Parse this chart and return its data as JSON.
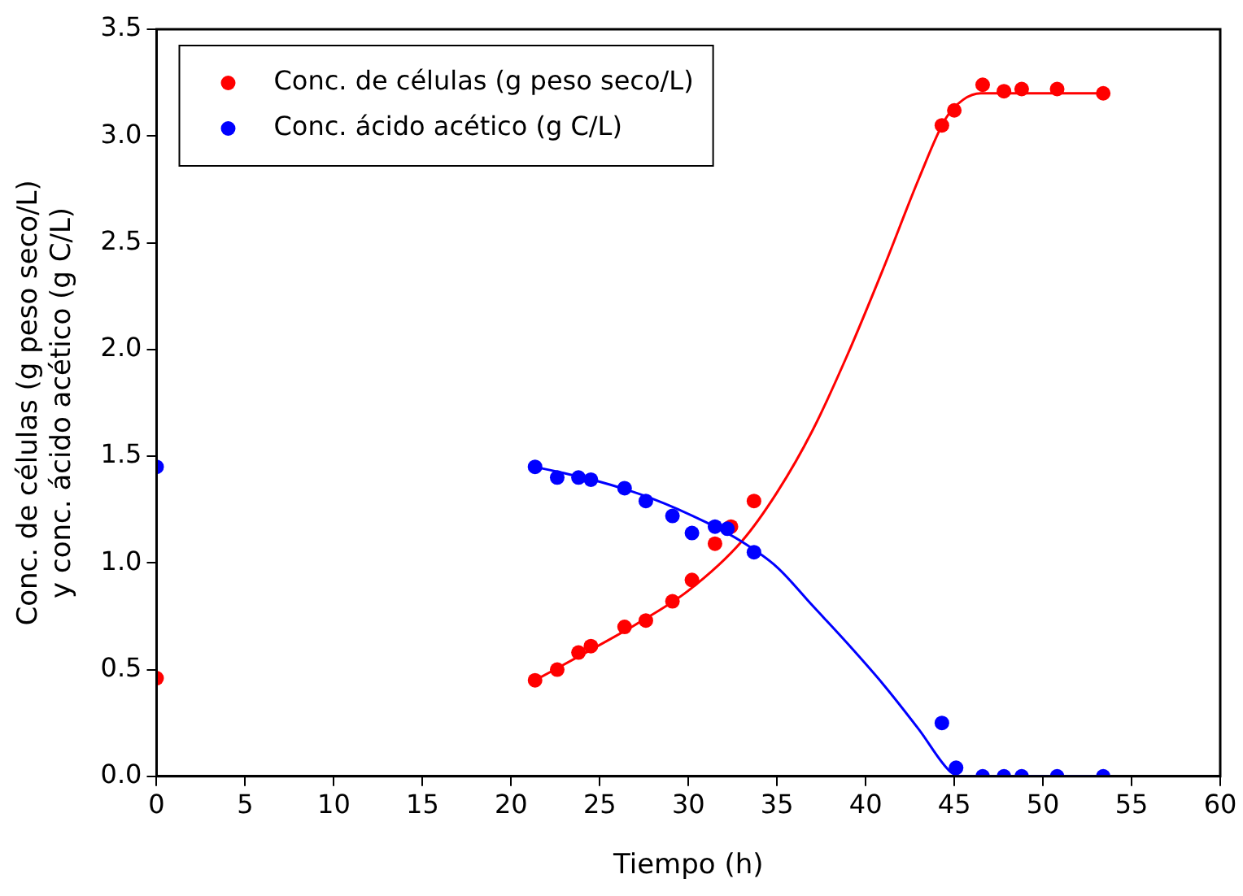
{
  "chart_data": {
    "type": "scatter",
    "xlabel": "Tiempo (h)",
    "ylabel": "Conc. de células (g peso seco/L)\ny conc. ácido acético (g C/L)",
    "xlim": [
      0,
      60
    ],
    "xticks": [
      0,
      5,
      10,
      15,
      20,
      25,
      30,
      35,
      40,
      45,
      50,
      55,
      60
    ],
    "ylim": [
      0,
      3.5
    ],
    "yticks": [
      {
        "value": 0,
        "label": "0.0"
      },
      0.5,
      {
        "value": 1,
        "label": "1.0"
      },
      1.5,
      {
        "value": 2,
        "label": "2.0"
      },
      2.5,
      {
        "value": 3,
        "label": "3.0"
      },
      3.5
    ],
    "grid": false,
    "legend": "top left",
    "marker": "circle",
    "series": [
      {
        "name": "Conc. de células (g peso seco/L)",
        "color": "#ff0000",
        "x": [
          0,
          21.35,
          22.6,
          23.8,
          24.5,
          26.4,
          27.6,
          29.1,
          30.2,
          31.5,
          32.4,
          33.7,
          44.3,
          45.0,
          46.6,
          47.8,
          48.8,
          50.8,
          53.4
        ],
        "values": [
          0.46,
          0.45,
          0.5,
          0.58,
          0.61,
          0.7,
          0.73,
          0.82,
          0.92,
          1.09,
          1.17,
          1.29,
          3.05,
          3.12,
          3.24,
          3.21,
          3.22,
          3.22,
          3.2
        ]
      },
      {
        "name": "Conc. ácido acético (g C/L)",
        "color": "#0000ff",
        "x": [
          0,
          21.35,
          22.6,
          23.8,
          24.5,
          26.4,
          27.6,
          29.1,
          30.2,
          31.5,
          32.2,
          33.7,
          44.3,
          45.1,
          46.6,
          47.8,
          48.8,
          50.8,
          53.4
        ],
        "values": [
          1.45,
          1.45,
          1.4,
          1.4,
          1.39,
          1.35,
          1.29,
          1.22,
          1.14,
          1.17,
          1.16,
          1.05,
          0.25,
          0.04,
          0,
          0,
          0,
          0,
          0
        ]
      },
      {
        "type": "line",
        "marker": "none",
        "line_style": "solid",
        "color": "#ff0000",
        "x": [
          21.35,
          24,
          27,
          30,
          33,
          35,
          37,
          39,
          41,
          43,
          44.5,
          45.5,
          46.5,
          53.4
        ],
        "values": [
          0.45,
          0.57,
          0.71,
          0.87,
          1.1,
          1.33,
          1.62,
          1.98,
          2.38,
          2.8,
          3.08,
          3.17,
          3.2,
          3.2
        ]
      },
      {
        "type": "line",
        "marker": "none",
        "line_style": "solid",
        "color": "#0000ff",
        "x": [
          21.35,
          25,
          28,
          31,
          33,
          35,
          37,
          39,
          41,
          43,
          44.8,
          45.5,
          53.4
        ],
        "values": [
          1.45,
          1.38,
          1.3,
          1.19,
          1.1,
          0.98,
          0.8,
          0.62,
          0.43,
          0.22,
          0.02,
          0,
          0
        ]
      }
    ]
  }
}
